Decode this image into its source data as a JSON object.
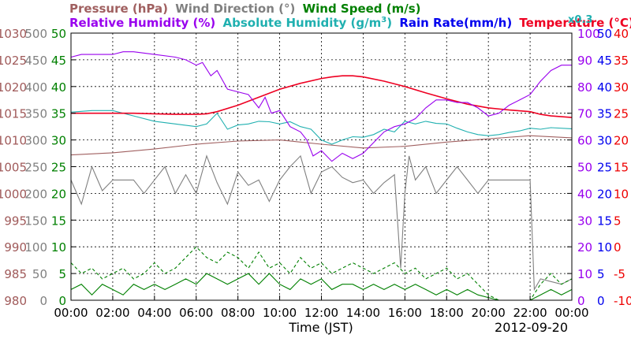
{
  "chart_data": {
    "type": "line",
    "date": "2012-09-20",
    "xlabel": "Time (JST)",
    "x_ticks": [
      "00:00",
      "02:00",
      "04:00",
      "06:00",
      "08:00",
      "10:00",
      "12:00",
      "14:00",
      "16:00",
      "18:00",
      "20:00",
      "22:00",
      "00:00"
    ],
    "x_range_hours": [
      0,
      24
    ],
    "grid": true,
    "legend_placement": "top",
    "legend": {
      "pressure": "Pressure (hPa)",
      "wind_direction": "Wind Direction (°)",
      "wind_speed": "Wind Speed (m/s)",
      "relative_humidity": "Relative Humidity (%)",
      "absolute_humidity_prefix": "Absolute Humidity (g/m",
      "absolute_humidity_sup": "3",
      "absolute_humidity_suffix": ")",
      "rain_rate": "Rain Rate(mm/h)",
      "temperature": "Temperature (°C)",
      "scale_note": "x0.3"
    },
    "axes": {
      "pressure": {
        "range": [
          980,
          1030
        ],
        "ticks": [
          "980",
          "985",
          "990",
          "995",
          "1000",
          "1005",
          "1010",
          "1015",
          "1020",
          "1025",
          "1030"
        ],
        "color": "#a05a5a"
      },
      "wind_direction": {
        "range": [
          0,
          500
        ],
        "ticks": [
          "0",
          "50",
          "100",
          "150",
          "200",
          "250",
          "300",
          "350",
          "400",
          "450",
          "500"
        ],
        "color": "#808080"
      },
      "wind_speed": {
        "range": [
          0,
          50
        ],
        "ticks": [
          "0",
          "5",
          "10",
          "15",
          "20",
          "25",
          "30",
          "35",
          "40",
          "45",
          "50"
        ],
        "color": "#008000"
      },
      "relative_humidity": {
        "range": [
          0,
          100
        ],
        "ticks": [
          "0",
          "10",
          "20",
          "30",
          "40",
          "50",
          "60",
          "70",
          "80",
          "90",
          "100"
        ],
        "color": "#9900ee"
      },
      "rain_rate": {
        "range": [
          0,
          50
        ],
        "ticks": [
          "0",
          "5",
          "10",
          "15",
          "20",
          "25",
          "30",
          "35",
          "40",
          "45",
          "50"
        ],
        "color": "#0000ee"
      },
      "temperature": {
        "range": [
          -10,
          40
        ],
        "ticks": [
          "-10",
          "-5",
          "0",
          "5",
          "10",
          "15",
          "20",
          "25",
          "30",
          "35",
          "40"
        ],
        "color": "#ee0000"
      }
    },
    "colors": {
      "pressure": "#a06060",
      "wind_direction": "#808080",
      "wind_speed": "#008000",
      "relative_humidity": "#9900ee",
      "absolute_humidity": "#20b0b0",
      "rain_rate": "#0000ee",
      "temperature": "#ee0022"
    },
    "series": [
      {
        "key": "temperature",
        "axis": "temperature",
        "style": "solid",
        "x": [
          0,
          1,
          2,
          3,
          4,
          5,
          6,
          6.5,
          7,
          8,
          9,
          10,
          11,
          12,
          12.5,
          13,
          13.5,
          14,
          15,
          16,
          17,
          18,
          19,
          20,
          21,
          22,
          22.5,
          23,
          24
        ],
        "y": [
          25,
          25,
          25,
          25,
          24.9,
          24.8,
          24.8,
          24.9,
          25.3,
          26.5,
          28,
          29.5,
          30.6,
          31.5,
          31.8,
          32,
          32,
          31.8,
          31,
          30,
          28.8,
          27.7,
          26.7,
          26,
          25.6,
          25.3,
          24.8,
          24.5,
          24.2
        ]
      },
      {
        "key": "relative_humidity",
        "axis": "relative_humidity",
        "style": "solid",
        "x": [
          0,
          0.5,
          1,
          2,
          2.5,
          3,
          4,
          5,
          5.5,
          6,
          6.3,
          6.7,
          7,
          7.5,
          8,
          8.5,
          9,
          9.3,
          9.6,
          10,
          10.5,
          11,
          11.3,
          11.6,
          12,
          12.5,
          13,
          13.5,
          14,
          15,
          15.5,
          16,
          16.5,
          17,
          17.5,
          18,
          18.5,
          19,
          19.5,
          20,
          20.5,
          21,
          21.5,
          22,
          22.5,
          23,
          23.5,
          24
        ],
        "y": [
          91,
          92,
          92,
          92,
          93,
          93,
          92,
          91,
          90,
          88,
          89,
          84,
          86,
          79,
          78,
          77,
          72,
          76,
          70,
          71,
          65,
          63,
          60,
          54,
          56,
          52,
          55,
          53,
          55,
          63,
          65,
          66,
          68,
          72,
          75,
          75,
          74,
          74,
          72,
          69,
          70,
          73,
          75,
          77,
          82,
          86,
          88,
          88
        ]
      },
      {
        "key": "absolute_humidity",
        "axis": "wind_speed",
        "style": "solid",
        "x": [
          0,
          1,
          2,
          3,
          4,
          5,
          6,
          6.5,
          7,
          7.5,
          8,
          8.5,
          9,
          9.5,
          10,
          10.5,
          11,
          11.5,
          12,
          12.5,
          13,
          13.5,
          14,
          14.5,
          15,
          15.5,
          16,
          16.5,
          17,
          17.5,
          18,
          18.5,
          19,
          19.5,
          20,
          20.5,
          21,
          21.5,
          22,
          22.5,
          23,
          24
        ],
        "y": [
          35.2,
          35.5,
          35.5,
          34.5,
          33.5,
          33,
          32.5,
          33,
          35,
          32,
          32.8,
          33,
          33.5,
          33.4,
          33,
          33.4,
          32.5,
          32,
          30,
          29.2,
          30,
          30.6,
          30.5,
          31,
          32,
          31.5,
          33.5,
          33,
          33.5,
          33.1,
          33,
          32.2,
          31.5,
          31,
          30.8,
          31,
          31.4,
          31.7,
          32.2,
          32,
          32.3,
          32.1
        ]
      },
      {
        "key": "pressure",
        "axis": "pressure",
        "style": "solid",
        "x": [
          0,
          2,
          4,
          6,
          8,
          10,
          12,
          14,
          16,
          18,
          20,
          22,
          24
        ],
        "y": [
          1007.2,
          1007.6,
          1008.3,
          1009.2,
          1009.8,
          1010,
          1009.2,
          1008.5,
          1008.8,
          1009.6,
          1010.2,
          1010.8,
          1010.4
        ]
      },
      {
        "key": "wind_direction",
        "axis": "wind_direction",
        "style": "solid",
        "x": [
          0,
          0.5,
          1,
          1.5,
          2,
          2.5,
          3,
          3.5,
          4,
          4.5,
          5,
          5.5,
          6,
          6.5,
          7,
          7.5,
          8,
          8.5,
          9,
          9.5,
          10,
          10.5,
          11,
          11.5,
          12,
          12.5,
          13,
          13.5,
          14,
          14.5,
          15,
          15.5,
          15.8,
          16,
          16.2,
          16.5,
          17,
          17.5,
          18,
          18.5,
          19,
          19.5,
          20,
          20.5,
          21,
          21.5,
          22,
          22.2,
          22.5,
          23,
          23.5,
          24
        ],
        "y": [
          225,
          180,
          250,
          205,
          225,
          225,
          225,
          200,
          225,
          250,
          200,
          235,
          200,
          270,
          220,
          180,
          240,
          215,
          225,
          185,
          225,
          250,
          270,
          200,
          240,
          250,
          230,
          220,
          225,
          200,
          220,
          235,
          60,
          200,
          270,
          225,
          250,
          200,
          225,
          250,
          225,
          200,
          225,
          225,
          225,
          225,
          225,
          20,
          40,
          35,
          30,
          40
        ]
      },
      {
        "key": "wind_speed_gust",
        "axis": "wind_speed",
        "style": "dashed",
        "x": [
          0,
          0.5,
          1,
          1.5,
          2,
          2.5,
          3,
          3.5,
          4,
          4.5,
          5,
          5.5,
          6,
          6.5,
          7,
          7.5,
          8,
          8.5,
          9,
          9.5,
          10,
          10.5,
          11,
          11.5,
          12,
          12.5,
          13,
          13.5,
          14,
          14.5,
          15,
          15.5,
          16,
          16.5,
          17,
          17.5,
          18,
          18.5,
          19,
          19.5,
          20,
          20.5,
          21,
          21.5,
          22,
          22.5,
          23,
          23.5,
          24
        ],
        "y": [
          7,
          5,
          6,
          4,
          5,
          6,
          4,
          5,
          7,
          5,
          6,
          8,
          10,
          8,
          7,
          9,
          8,
          6,
          9,
          6,
          7,
          5,
          8,
          6,
          7,
          5,
          6,
          7,
          6,
          5,
          6,
          7,
          5,
          6,
          4,
          5,
          6,
          4,
          5,
          3,
          1,
          0,
          0,
          0,
          0,
          3,
          5,
          3,
          4
        ]
      },
      {
        "key": "wind_speed_avg",
        "axis": "wind_speed",
        "style": "solid",
        "x": [
          0,
          0.5,
          1,
          1.5,
          2,
          2.5,
          3,
          3.5,
          4,
          4.5,
          5,
          5.5,
          6,
          6.5,
          7,
          7.5,
          8,
          8.5,
          9,
          9.5,
          10,
          10.5,
          11,
          11.5,
          12,
          12.5,
          13,
          13.5,
          14,
          14.5,
          15,
          15.5,
          16,
          16.5,
          17,
          17.5,
          18,
          18.5,
          19,
          19.5,
          20,
          20.5,
          21,
          21.5,
          22,
          22.5,
          23,
          23.5,
          24
        ],
        "y": [
          2,
          3,
          1,
          3,
          2,
          1,
          3,
          2,
          3,
          2,
          3,
          4,
          3,
          5,
          4,
          3,
          4,
          5,
          3,
          5,
          3,
          2,
          4,
          3,
          4,
          2,
          3,
          3,
          2,
          3,
          2,
          3,
          2,
          3,
          2,
          1,
          2,
          1,
          2,
          1,
          0.5,
          0,
          0,
          0,
          0,
          1,
          2,
          1,
          2
        ]
      },
      {
        "key": "rain_rate",
        "axis": "rain_rate",
        "style": "solid",
        "x": [
          0,
          24
        ],
        "y": [
          0,
          0
        ]
      }
    ]
  }
}
